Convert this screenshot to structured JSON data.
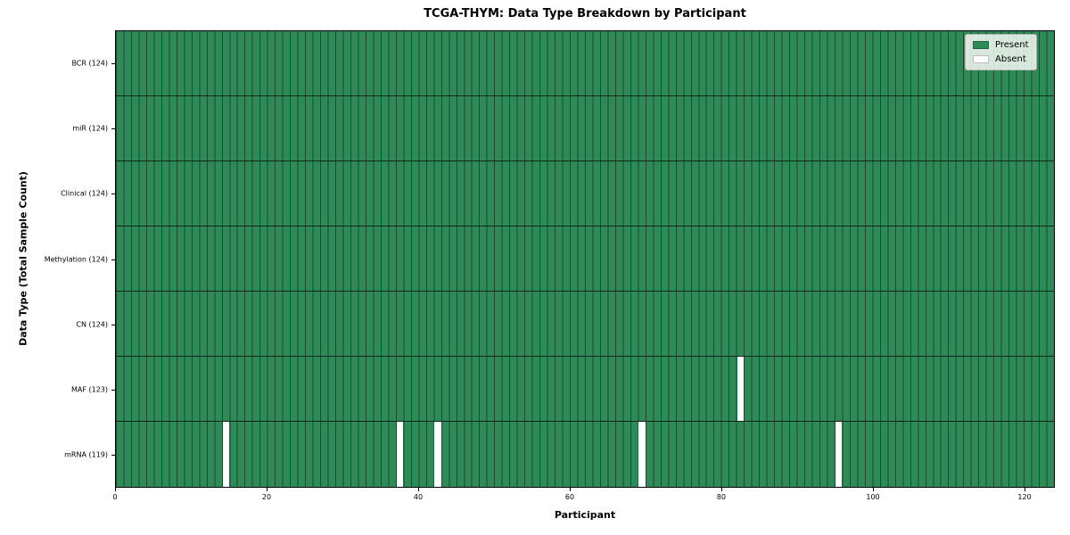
{
  "figure": {
    "background": "#ffffff"
  },
  "chart_data": {
    "type": "heatmap",
    "title": "TCGA-THYM: Data Type Breakdown by Participant",
    "xlabel": "Participant",
    "ylabel": "Data Type (Total Sample Count)",
    "x_range": [
      0,
      124
    ],
    "n_participants": 124,
    "x_ticks": [
      0,
      20,
      40,
      60,
      80,
      100,
      120
    ],
    "grid": false,
    "legend_position": "upper-right",
    "legend": [
      {
        "label": "Present",
        "color": "#2e8b57"
      },
      {
        "label": "Absent",
        "color": "#ffffff"
      }
    ],
    "rows": [
      {
        "label": "BCR (124)",
        "data_type": "BCR",
        "total_samples": 124,
        "absent_participants": []
      },
      {
        "label": "miR (124)",
        "data_type": "miR",
        "total_samples": 124,
        "absent_participants": []
      },
      {
        "label": "Clinical (124)",
        "data_type": "Clinical",
        "total_samples": 124,
        "absent_participants": []
      },
      {
        "label": "Methylation (124)",
        "data_type": "Methylation",
        "total_samples": 124,
        "absent_participants": []
      },
      {
        "label": "CN (124)",
        "data_type": "CN",
        "total_samples": 124,
        "absent_participants": []
      },
      {
        "label": "MAF (123)",
        "data_type": "MAF",
        "total_samples": 123,
        "absent_participants": [
          82
        ]
      },
      {
        "label": "mRNA (119)",
        "data_type": "mRNA",
        "total_samples": 119,
        "absent_participants": [
          14,
          37,
          42,
          69,
          95
        ]
      }
    ],
    "colors": {
      "present": "#2e8b57",
      "absent": "#ffffff",
      "cell_edge": "#1b4b33",
      "row_separator": "#14231a",
      "axis": "#000000"
    }
  }
}
